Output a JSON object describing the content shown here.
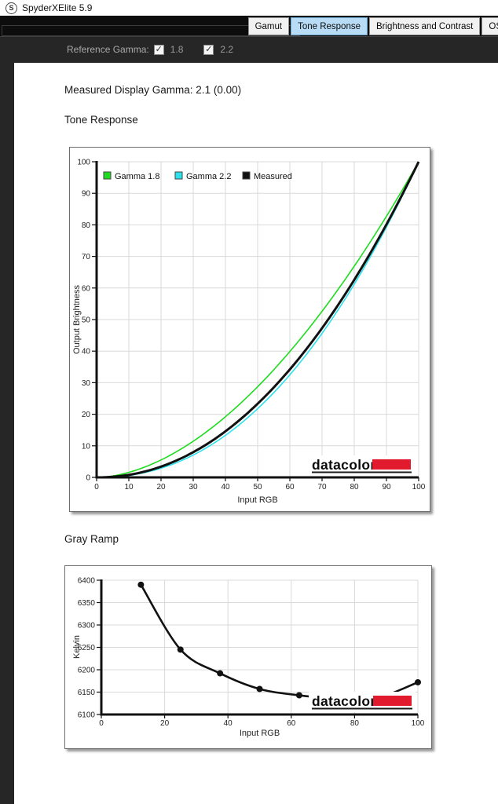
{
  "window": {
    "title": "SpyderXElite 5.9",
    "icon_letter": "S"
  },
  "tabs": [
    {
      "label": "Gamut",
      "selected": false
    },
    {
      "label": "Tone Response",
      "selected": true
    },
    {
      "label": "Brightness and Contrast",
      "selected": false
    },
    {
      "label": "OS",
      "selected": false
    }
  ],
  "reference_gamma": {
    "label": "Reference Gamma:",
    "options": [
      {
        "label": "1.8",
        "checked": true
      },
      {
        "label": "2.2",
        "checked": true
      }
    ]
  },
  "main": {
    "measured_gamma_text": "Measured Display Gamma: 2.1 (0.00)",
    "tone_response_title": "Tone Response",
    "gray_ramp_title": "Gray Ramp"
  },
  "colors": {
    "selected_tab": "#b9dcf6",
    "gamma_1_8": "#1edc1e",
    "gamma_2_2": "#2ce1ec",
    "measured": "#111111",
    "grid": "#d9d9d9",
    "axis": "#111111",
    "datacolor_red": "#e11b2d"
  },
  "watermark": {
    "text": "datacolor"
  },
  "chart_data": [
    {
      "id": "tone_response",
      "type": "line",
      "title": "Tone Response",
      "xlabel": "Input RGB",
      "ylabel": "Output Brightness",
      "xlim": [
        0,
        100
      ],
      "ylim": [
        0,
        100
      ],
      "xticks": [
        0,
        10,
        20,
        30,
        40,
        50,
        60,
        70,
        80,
        90,
        100
      ],
      "yticks": [
        0,
        10,
        20,
        30,
        40,
        50,
        60,
        70,
        80,
        90,
        100
      ],
      "grid": true,
      "legend_position": "top-left-inside",
      "legend": [
        {
          "name": "Gamma 1.8",
          "color": "#1edc1e"
        },
        {
          "name": "Gamma 2.2",
          "color": "#2ce1ec"
        },
        {
          "name": "Measured",
          "color": "#111111"
        }
      ],
      "series": [
        {
          "name": "Gamma 1.8",
          "curve": "power",
          "gamma": 1.8,
          "scale": 100,
          "color": "#1edc1e",
          "width": 1.6
        },
        {
          "name": "Gamma 2.2",
          "curve": "power",
          "gamma": 2.2,
          "scale": 100,
          "color": "#2ce1ec",
          "width": 1.6
        },
        {
          "name": "Measured",
          "curve": "power",
          "gamma": 2.1,
          "scale": 100,
          "color": "#111111",
          "width": 3
        }
      ]
    },
    {
      "id": "gray_ramp",
      "type": "line",
      "title": "Gray Ramp",
      "xlabel": "Input RGB",
      "ylabel": "Kelvin",
      "xlim": [
        0,
        100
      ],
      "ylim": [
        6100,
        6400
      ],
      "xticks": [
        0,
        20,
        40,
        60,
        80,
        100
      ],
      "yticks": [
        6100,
        6150,
        6200,
        6250,
        6300,
        6350,
        6400
      ],
      "grid": true,
      "marker": "filled-circle",
      "points": [
        [
          12.5,
          6390
        ],
        [
          25,
          6245
        ],
        [
          37.5,
          6192
        ],
        [
          50,
          6157
        ],
        [
          62.5,
          6143
        ],
        [
          75,
          6135
        ],
        [
          87.5,
          6138
        ],
        [
          100,
          6172
        ]
      ]
    }
  ]
}
